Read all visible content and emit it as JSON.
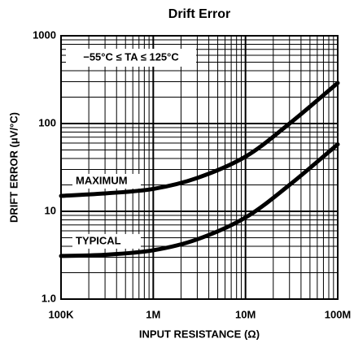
{
  "chart_data": {
    "type": "line",
    "title": "Drift Error",
    "x_label": "INPUT RESISTANCE (Ω)",
    "y_label": "DRIFT ERROR (μV/°C)",
    "annotation": "−55°C ≤ TA ≤ 125°C",
    "x": [
      100000,
      300000,
      1000000,
      3000000,
      10000000,
      30000000,
      100000000
    ],
    "series": [
      {
        "name": "MAXIMUM",
        "color": "#000000",
        "values": [
          15,
          16,
          18,
          24,
          42,
          100,
          290
        ]
      },
      {
        "name": "TYPICAL",
        "color": "#000000",
        "values": [
          3.1,
          3.2,
          3.6,
          4.8,
          8.5,
          20,
          58
        ]
      }
    ],
    "xlim": [
      100000,
      100000000
    ],
    "ylim": [
      1,
      1000
    ],
    "xticks": [
      {
        "value": 100000,
        "label": "100K"
      },
      {
        "value": 1000000,
        "label": "1M"
      },
      {
        "value": 10000000,
        "label": "10M"
      },
      {
        "value": 100000000,
        "label": "100M"
      }
    ],
    "yticks": [
      {
        "value": 1,
        "label": "1.0"
      },
      10,
      100,
      1000
    ],
    "xscale": "log",
    "yscale": "log",
    "grid": true
  }
}
